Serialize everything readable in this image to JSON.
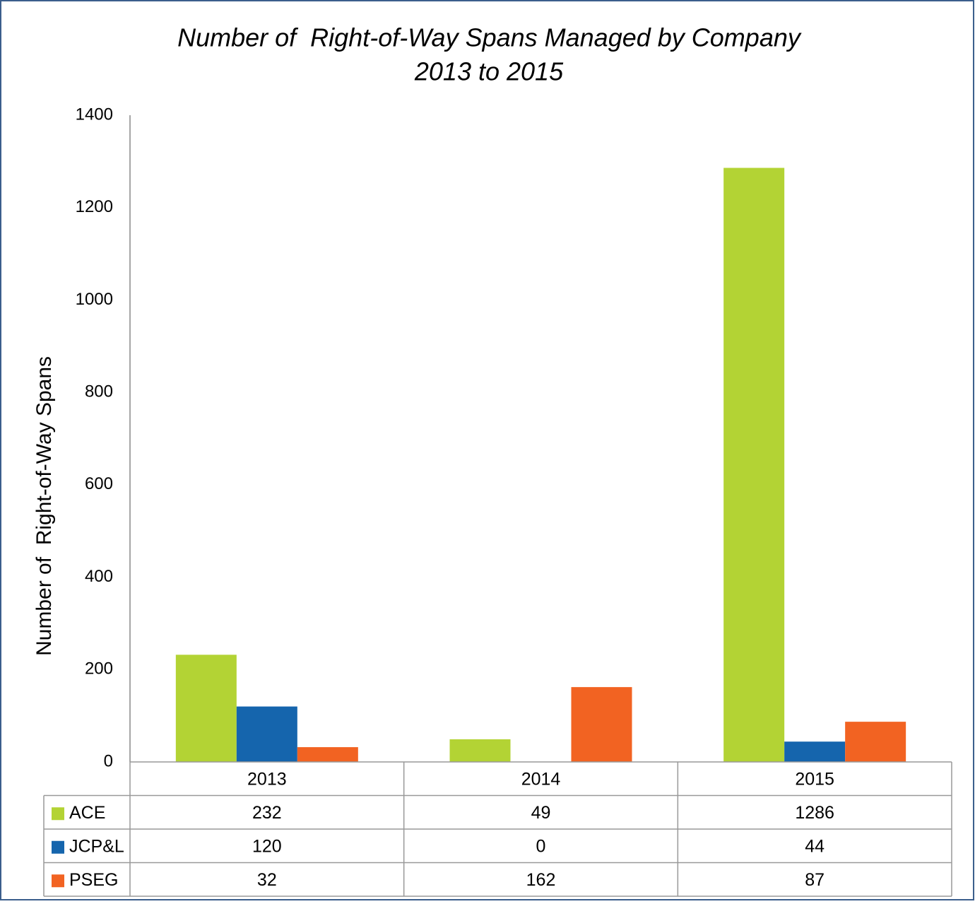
{
  "chart_data": {
    "type": "bar",
    "title": [
      "Number of  Right-of-Way Spans Managed by Company",
      "2013 to 2015"
    ],
    "y_label": "Number of  Right-of-Way Spans",
    "categories": [
      "2013",
      "2014",
      "2015"
    ],
    "series": [
      {
        "name": "ACE",
        "color": "#b3d334",
        "values": [
          232,
          49,
          1286
        ]
      },
      {
        "name": "JCP&L",
        "color": "#1565ad",
        "values": [
          120,
          0,
          44
        ]
      },
      {
        "name": "PSEG",
        "color": "#f26322",
        "values": [
          32,
          162,
          87
        ]
      }
    ],
    "ylim": [
      0,
      1400
    ],
    "yticks": [
      0,
      200,
      400,
      600,
      800,
      1000,
      1200,
      1400
    ],
    "grid": false
  }
}
